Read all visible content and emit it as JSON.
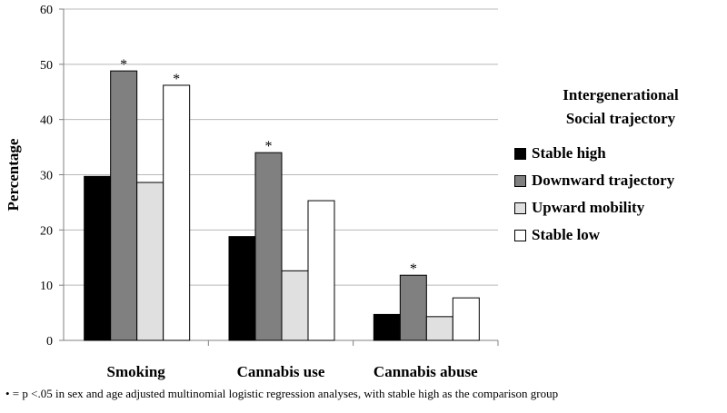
{
  "chart_data": {
    "type": "bar",
    "title": "",
    "xlabel": "",
    "ylabel": "Percentage",
    "ylim": [
      0,
      60
    ],
    "yticks": [
      "0",
      "10",
      "20",
      "30",
      "40",
      "50",
      "60"
    ],
    "grid": true,
    "legend_placement": "right",
    "categories": [
      "Smoking",
      "Cannabis use",
      "Cannabis abuse"
    ],
    "series": [
      {
        "name": "Stable high",
        "color": "#000000",
        "values": [
          29.7,
          18.8,
          4.7
        ],
        "significant": [
          false,
          false,
          false
        ]
      },
      {
        "name": "Downward trajectory",
        "color": "#808080",
        "values": [
          48.8,
          34.0,
          11.8
        ],
        "significant": [
          true,
          true,
          true
        ]
      },
      {
        "name": "Upward mobility",
        "color": "#e0e0e0",
        "values": [
          28.6,
          12.6,
          4.3
        ],
        "significant": [
          false,
          false,
          false
        ]
      },
      {
        "name": "Stable low",
        "color": "#ffffff",
        "values": [
          46.2,
          25.3,
          7.7
        ],
        "significant": [
          true,
          false,
          false
        ]
      }
    ],
    "significance_marker": "*"
  },
  "legend": {
    "title_line1": "Intergenerational",
    "title_line2": "Social trajectory"
  },
  "footnote": "• = p <.05 in sex and age adjusted multinomial logistic regression analyses, with stable high as the comparison group"
}
